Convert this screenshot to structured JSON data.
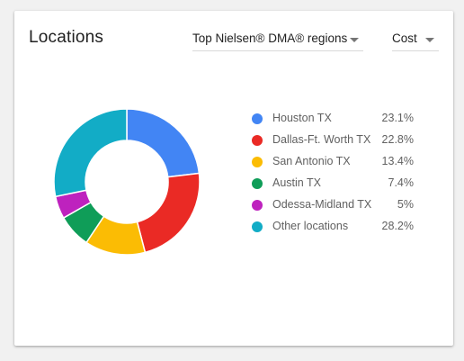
{
  "card": {
    "title": "Locations",
    "region_dropdown": "Top Nielsen® DMA® regions",
    "metric_dropdown": "Cost"
  },
  "colors": {
    "houston": "#4285f4",
    "dallas": "#ea2a25",
    "san_antonio": "#fbbc04",
    "austin": "#0f9d58",
    "odessa": "#be22be",
    "other": "#12acc6"
  },
  "legend": [
    {
      "name": "Houston TX",
      "value": "23.1%",
      "color": "#4285f4"
    },
    {
      "name": "Dallas-Ft. Worth TX",
      "value": "22.8%",
      "color": "#ea2a25"
    },
    {
      "name": "San Antonio TX",
      "value": "13.4%",
      "color": "#fbbc04"
    },
    {
      "name": "Austin TX",
      "value": "7.4%",
      "color": "#0f9d58"
    },
    {
      "name": "Odessa-Midland TX",
      "value": "5%",
      "color": "#be22be"
    },
    {
      "name": "Other locations",
      "value": "28.2%",
      "color": "#12acc6"
    }
  ],
  "chart_data": {
    "type": "pie",
    "categories": [
      "Houston TX",
      "Dallas-Ft. Worth TX",
      "San Antonio TX",
      "Austin TX",
      "Odessa-Midland TX",
      "Other locations"
    ],
    "values": [
      23.1,
      22.8,
      13.4,
      7.4,
      5,
      28.2
    ],
    "donut": true
  }
}
